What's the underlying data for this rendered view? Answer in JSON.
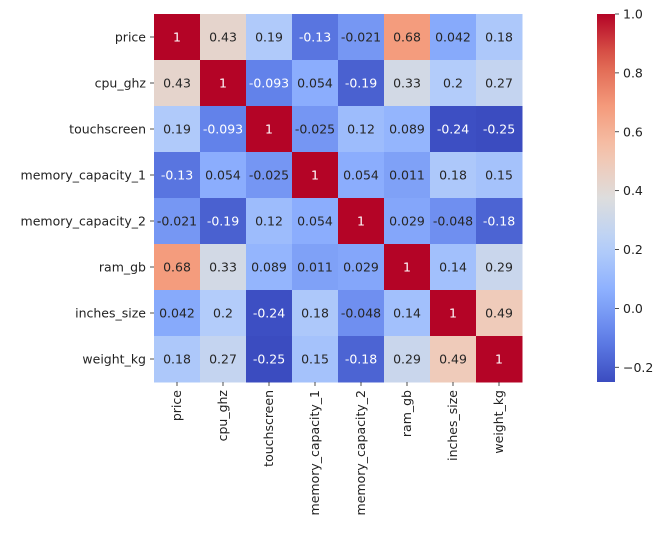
{
  "chart_data": {
    "type": "heatmap",
    "title": "",
    "rows": [
      "price",
      "cpu_ghz",
      "touchscreen",
      "memory_capacity_1",
      "memory_capacity_2",
      "ram_gb",
      "inches_size",
      "weight_kg"
    ],
    "columns": [
      "price",
      "cpu_ghz",
      "touchscreen",
      "memory_capacity_1",
      "memory_capacity_2",
      "ram_gb",
      "inches_size",
      "weight_kg"
    ],
    "values": [
      [
        1,
        0.43,
        0.19,
        -0.13,
        -0.021,
        0.68,
        0.042,
        0.18
      ],
      [
        0.43,
        1,
        -0.093,
        0.054,
        -0.19,
        0.33,
        0.2,
        0.27
      ],
      [
        0.19,
        -0.093,
        1,
        -0.025,
        0.12,
        0.089,
        -0.24,
        -0.25
      ],
      [
        -0.13,
        0.054,
        -0.025,
        1,
        0.054,
        0.011,
        0.18,
        0.15
      ],
      [
        -0.021,
        -0.19,
        0.12,
        0.054,
        1,
        0.029,
        -0.048,
        -0.18
      ],
      [
        0.68,
        0.33,
        0.089,
        0.011,
        0.029,
        1,
        0.14,
        0.29
      ],
      [
        0.042,
        0.2,
        -0.24,
        0.18,
        -0.048,
        0.14,
        1,
        0.49
      ],
      [
        0.18,
        0.27,
        -0.25,
        0.15,
        -0.18,
        0.29,
        0.49,
        1
      ]
    ],
    "cell_labels": [
      [
        "1",
        "0.43",
        "0.19",
        "-0.13",
        "-0.021",
        "0.68",
        "0.042",
        "0.18"
      ],
      [
        "0.43",
        "1",
        "-0.093",
        "0.054",
        "-0.19",
        "0.33",
        "0.2",
        "0.27"
      ],
      [
        "0.19",
        "-0.093",
        "1",
        "-0.025",
        "0.12",
        "0.089",
        "-0.24",
        "-0.25"
      ],
      [
        "-0.13",
        "0.054",
        "-0.025",
        "1",
        "0.054",
        "0.011",
        "0.18",
        "0.15"
      ],
      [
        "-0.021",
        "-0.19",
        "0.12",
        "0.054",
        "1",
        "0.029",
        "-0.048",
        "-0.18"
      ],
      [
        "0.68",
        "0.33",
        "0.089",
        "0.011",
        "0.029",
        "1",
        "0.14",
        "0.29"
      ],
      [
        "0.042",
        "0.2",
        "-0.24",
        "0.18",
        "-0.048",
        "0.14",
        "1",
        "0.49"
      ],
      [
        "0.18",
        "0.27",
        "-0.25",
        "0.15",
        "-0.18",
        "0.29",
        "0.49",
        "1"
      ]
    ],
    "colormap": "coolwarm",
    "colorbar": {
      "range": [
        -0.25,
        1.0
      ],
      "ticks": [
        -0.2,
        0.0,
        0.2,
        0.4,
        0.6,
        0.8,
        1.0
      ],
      "tick_labels": [
        "−0.2",
        "0.0",
        "0.2",
        "0.4",
        "0.6",
        "0.8",
        "1.0"
      ]
    },
    "grid": false,
    "legend": "colorbar-right"
  }
}
